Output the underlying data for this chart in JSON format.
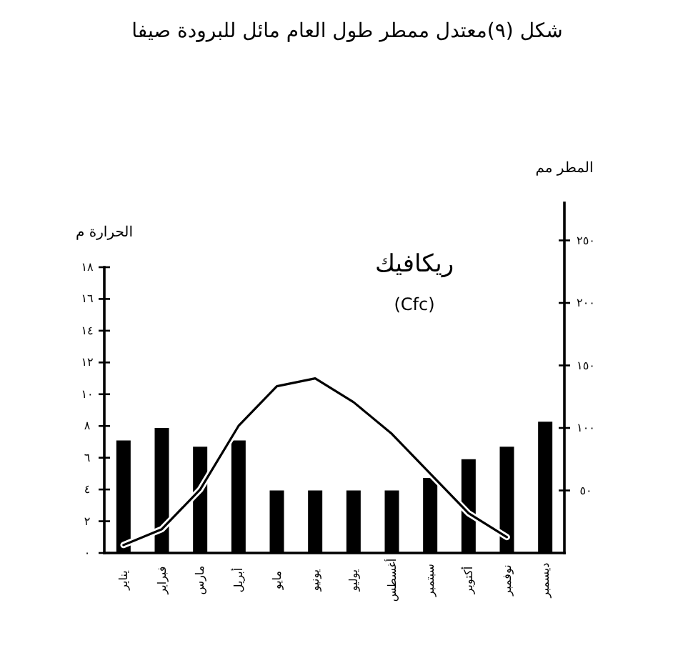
{
  "chart_data": {
    "type": "bar",
    "title": "شكل (٩)معتدل ممطر طول العام مائل للبرودة صيفا",
    "ylabel": "الحرارة م",
    "y2label": "المطر مم",
    "annotations": [
      "ريكافيك",
      "(Cfc)"
    ],
    "categories": [
      "يناير",
      "فبراير",
      "مارس",
      "أبريل",
      "مايو",
      "يونيو",
      "يوليو",
      "أغسطس",
      "سبتمبر",
      "أكتوبر",
      "نوفمبر",
      "ديسمبر"
    ],
    "series": [
      {
        "type": "line",
        "color": "#000000",
        "values": [
          0.5,
          1.5,
          4,
          8,
          10.5,
          11,
          9.5,
          7.5,
          5,
          2.5,
          1,
          null
        ]
      },
      {
        "axis": "y2",
        "color": "#000000",
        "values": [
          90,
          100,
          85,
          90,
          50,
          50,
          50,
          50,
          60,
          75,
          85,
          105
        ]
      }
    ],
    "ylim": [
      0,
      18
    ],
    "yticks": [
      {
        "value": 0,
        "label": "٠"
      },
      {
        "value": 2,
        "label": "٢"
      },
      {
        "value": 4,
        "label": "٤"
      },
      {
        "value": 6,
        "label": "٦"
      },
      {
        "value": 8,
        "label": "٨"
      },
      {
        "value": 10,
        "label": "١٠"
      },
      {
        "value": 12,
        "label": "١٢"
      },
      {
        "value": 14,
        "label": "١٤"
      },
      {
        "value": 16,
        "label": "١٦"
      },
      {
        "value": 18,
        "label": "١٨"
      }
    ],
    "y2lim": [
      0,
      280
    ],
    "y2ticks": [
      {
        "value": 50,
        "label": "٥٠"
      },
      {
        "value": 100,
        "label": "١٠٠"
      },
      {
        "value": 150,
        "label": "١٥٠"
      },
      {
        "value": 200,
        "label": "٢٠٠"
      },
      {
        "value": 250,
        "label": "٢٥٠"
      }
    ],
    "marker": "none"
  }
}
